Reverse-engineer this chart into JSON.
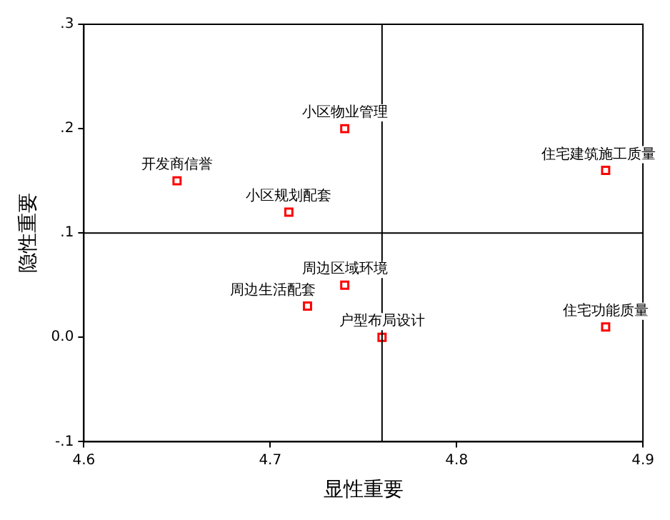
{
  "chart_data": {
    "type": "scatter",
    "xlabel": "显性重要",
    "ylabel": "隐性重要",
    "xlim": [
      4.6,
      4.9
    ],
    "xticks": [
      4.6,
      4.7,
      4.8,
      4.9
    ],
    "ylim": [
      -0.1,
      0.3
    ],
    "yticks": [
      {
        "value": -0.1,
        "label": "-.1"
      },
      {
        "value": 0,
        "label": "0.0"
      },
      {
        "value": 0.1,
        "label": ".1"
      },
      {
        "value": 0.2,
        "label": ".2"
      },
      {
        "value": 0.3,
        "label": ".3"
      }
    ],
    "grid": false,
    "legend": false,
    "marker": "square",
    "ref_lines": [
      {
        "axis": "x",
        "value": 4.76,
        "color": "#000000"
      },
      {
        "axis": "y",
        "value": 0.1,
        "color": "#000000"
      }
    ],
    "series": [
      {
        "name": "开发商信誉",
        "color": "#ff0000",
        "x": [
          4.65
        ],
        "values": [
          0.15
        ]
      },
      {
        "name": "小区物业管理",
        "color": "#ff0000",
        "x": [
          4.74
        ],
        "values": [
          0.2
        ]
      },
      {
        "name": "小区规划配套",
        "color": "#ff0000",
        "x": [
          4.71
        ],
        "values": [
          0.12
        ]
      },
      {
        "name": "住宅建筑施工质量",
        "color": "#ff0000",
        "x": [
          4.88
        ],
        "values": [
          0.16
        ]
      },
      {
        "name": "周边区域环境",
        "color": "#ff0000",
        "x": [
          4.74
        ],
        "values": [
          0.05
        ]
      },
      {
        "name": "周边生活配套",
        "color": "#ff0000",
        "x": [
          4.72
        ],
        "values": [
          0.03
        ]
      },
      {
        "name": "户型布局设计",
        "color": "#ff0000",
        "x": [
          4.76
        ],
        "values": [
          0.0
        ]
      },
      {
        "name": "住宅功能质量",
        "color": "#ff0000",
        "x": [
          4.88
        ],
        "values": [
          0.01
        ]
      }
    ]
  }
}
